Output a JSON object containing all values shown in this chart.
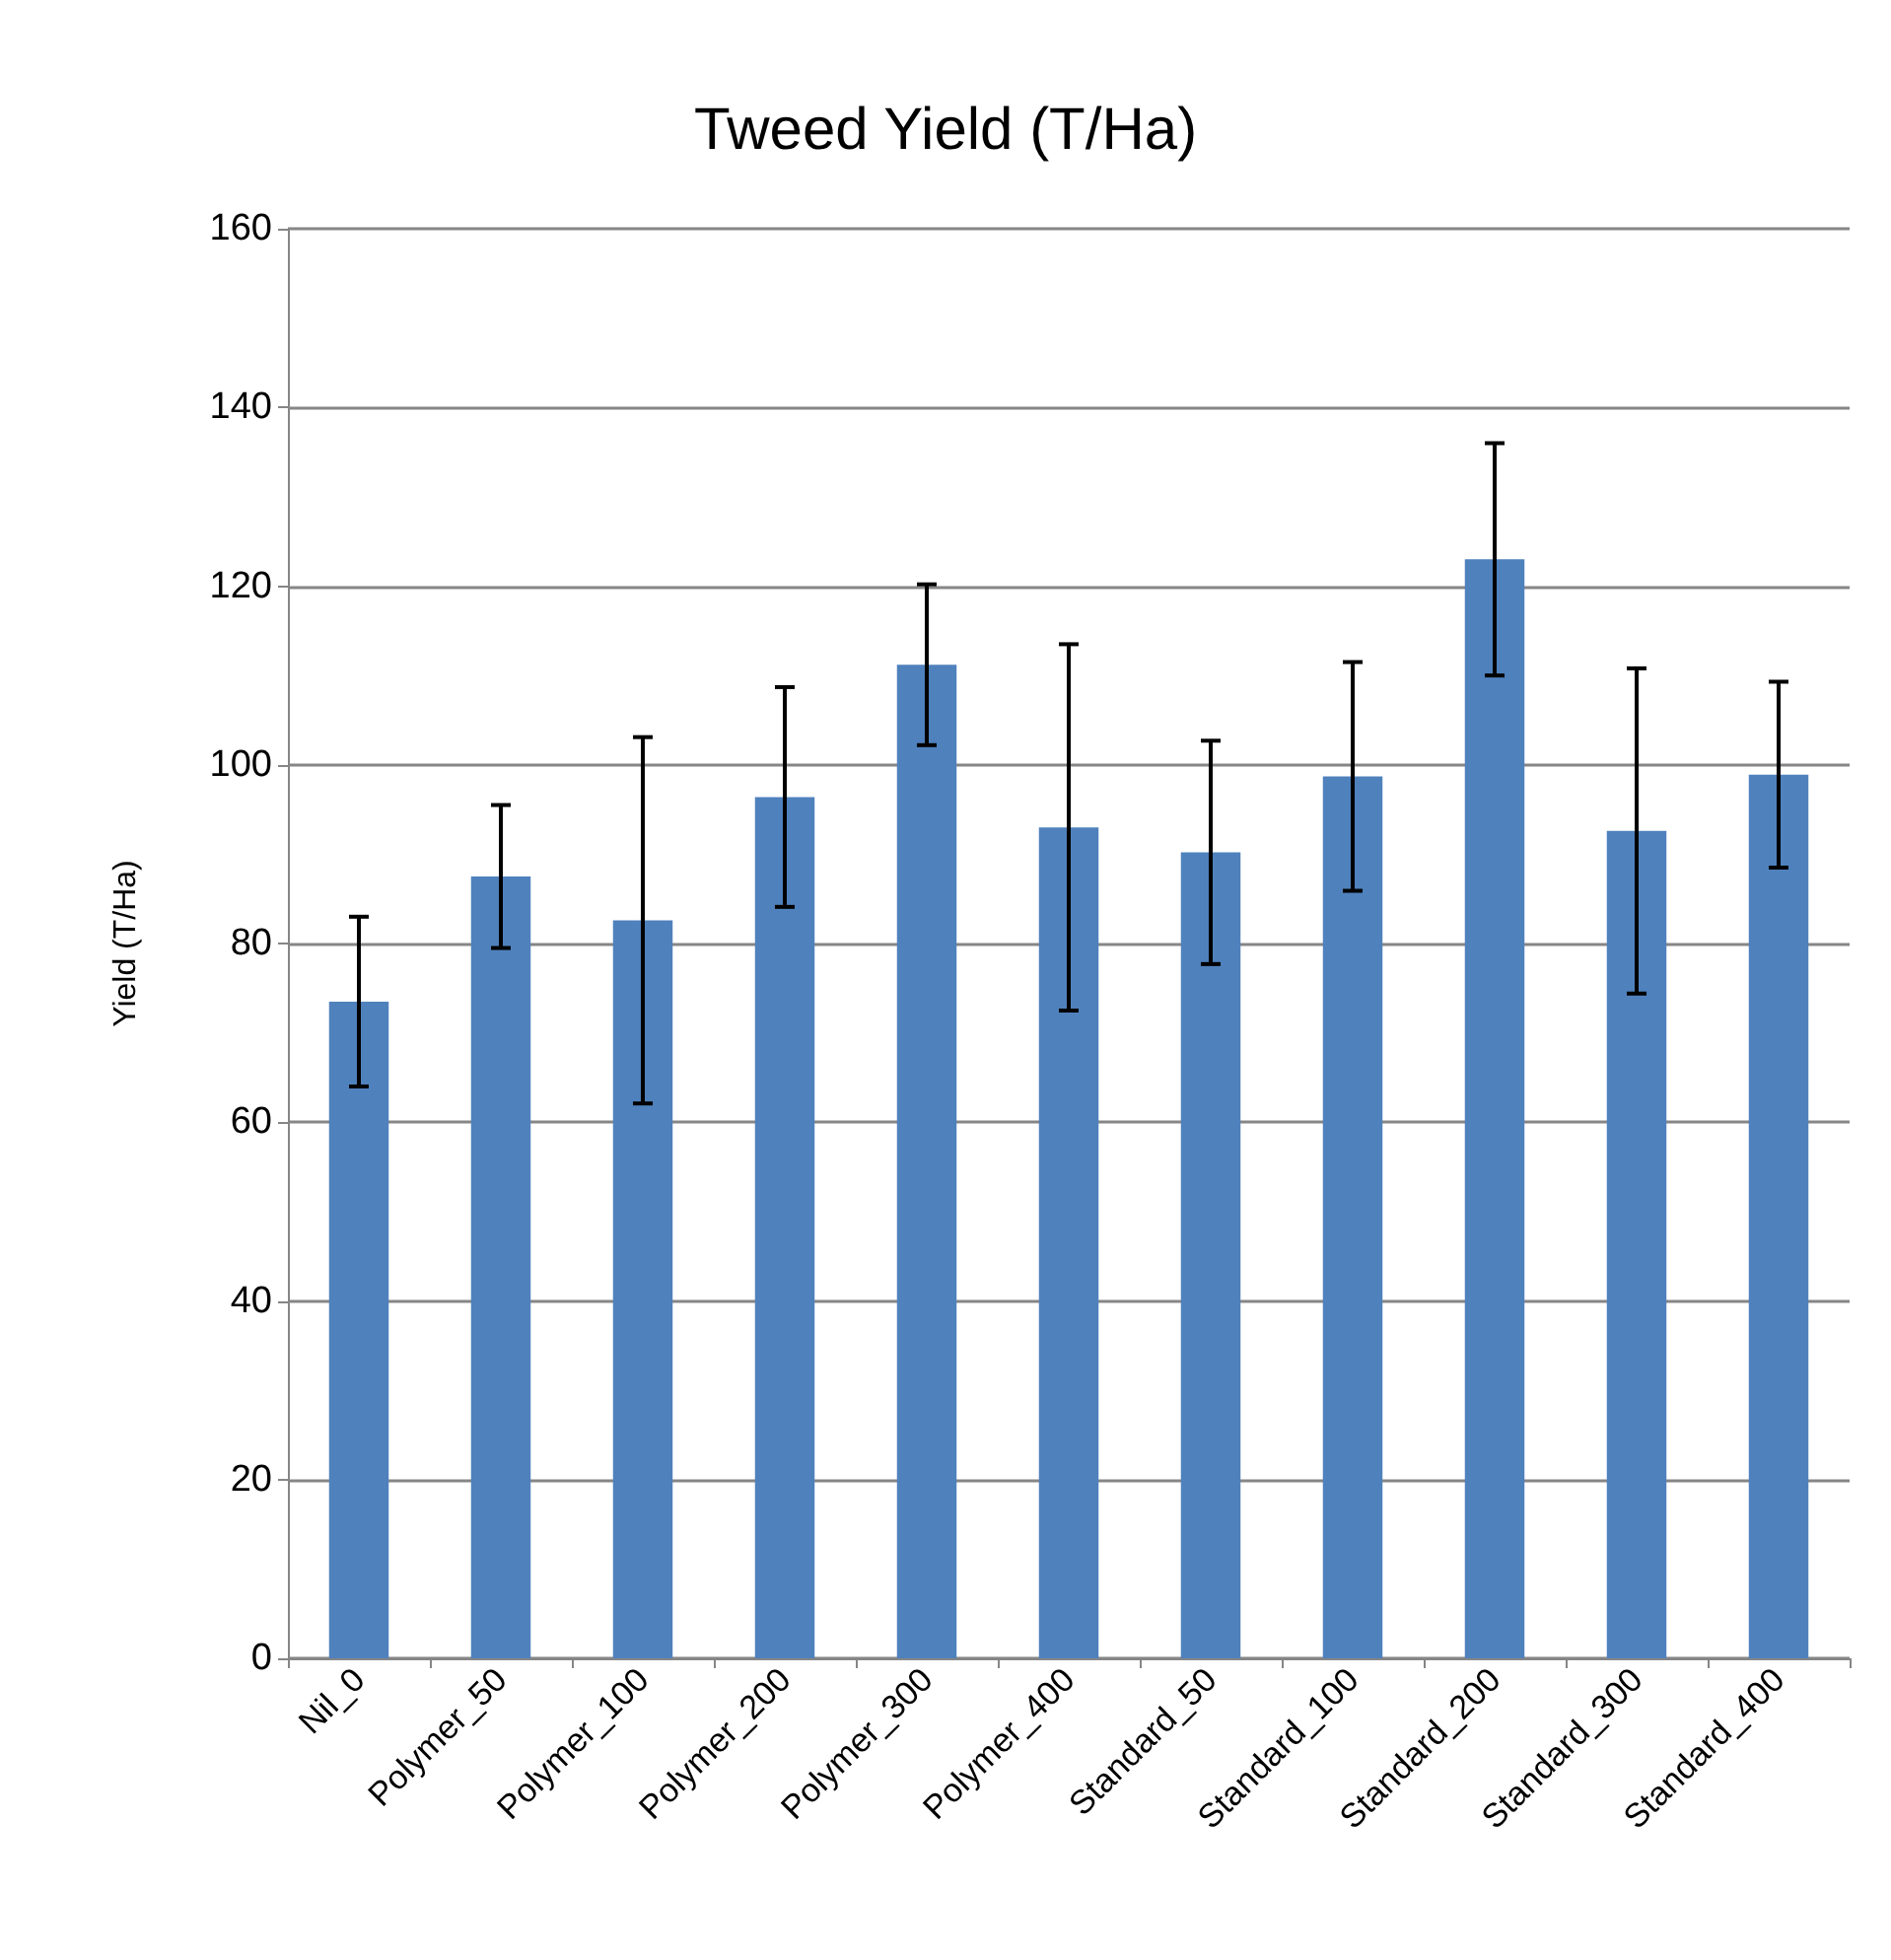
{
  "chart_data": {
    "type": "bar",
    "title": "Tweed Yield (T/Ha)",
    "ylabel": "Yield (T/Ha)",
    "categories": [
      "Nil_0",
      "Polymer_50",
      "Polymer_100",
      "Polymer_200",
      "Polymer_300",
      "Polymer_400",
      "Standard_50",
      "Standard_100",
      "Standard_200",
      "Standard_300",
      "Standard_400"
    ],
    "values": [
      73.5,
      87.5,
      82.6,
      96.4,
      111.2,
      93,
      90.2,
      98.7,
      123,
      92.6,
      98.9
    ],
    "errors": [
      9.5,
      8,
      20.5,
      12.3,
      9,
      20.5,
      12.5,
      12.8,
      13,
      18.2,
      10.4
    ],
    "color": "#4f81bd",
    "ylim": [
      0,
      160
    ],
    "yticks": [
      0,
      20,
      40,
      60,
      80,
      100,
      120,
      140,
      160
    ],
    "grid": "y"
  }
}
